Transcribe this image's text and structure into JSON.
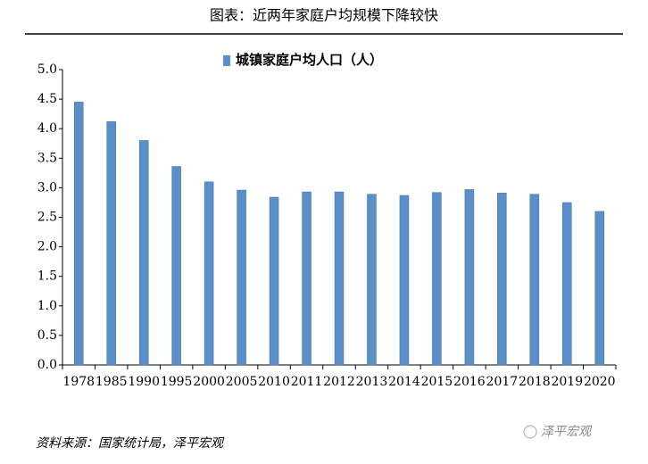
{
  "chart_data": {
    "type": "bar",
    "title": "图表：近两年家庭户均规模下降较快",
    "categories": [
      "1978",
      "1985",
      "1990",
      "1995",
      "2000",
      "2005",
      "2010",
      "2011",
      "2012",
      "2013",
      "2014",
      "2015",
      "2016",
      "2017",
      "2018",
      "2019",
      "2020"
    ],
    "series": [
      {
        "name": "城镇家庭户均人口（人）",
        "color": "#5b8fc9",
        "values": [
          4.45,
          4.12,
          3.8,
          3.36,
          3.1,
          2.96,
          2.84,
          2.93,
          2.93,
          2.89,
          2.87,
          2.92,
          2.97,
          2.91,
          2.89,
          2.75,
          2.6
        ]
      }
    ],
    "ylim": [
      0,
      5
    ],
    "yticks": [
      {
        "value": 0,
        "label": "0.0"
      },
      0.5,
      {
        "value": 1,
        "label": "1.0"
      },
      1.5,
      {
        "value": 2,
        "label": "2.0"
      },
      2.5,
      {
        "value": 3,
        "label": "3.0"
      },
      3.5,
      {
        "value": 4,
        "label": "4.0"
      },
      4.5,
      {
        "value": 5,
        "label": "5.0"
      }
    ],
    "legend": "top"
  },
  "source": "资料来源：国家统计局，泽平宏观",
  "watermark": "泽平宏观"
}
